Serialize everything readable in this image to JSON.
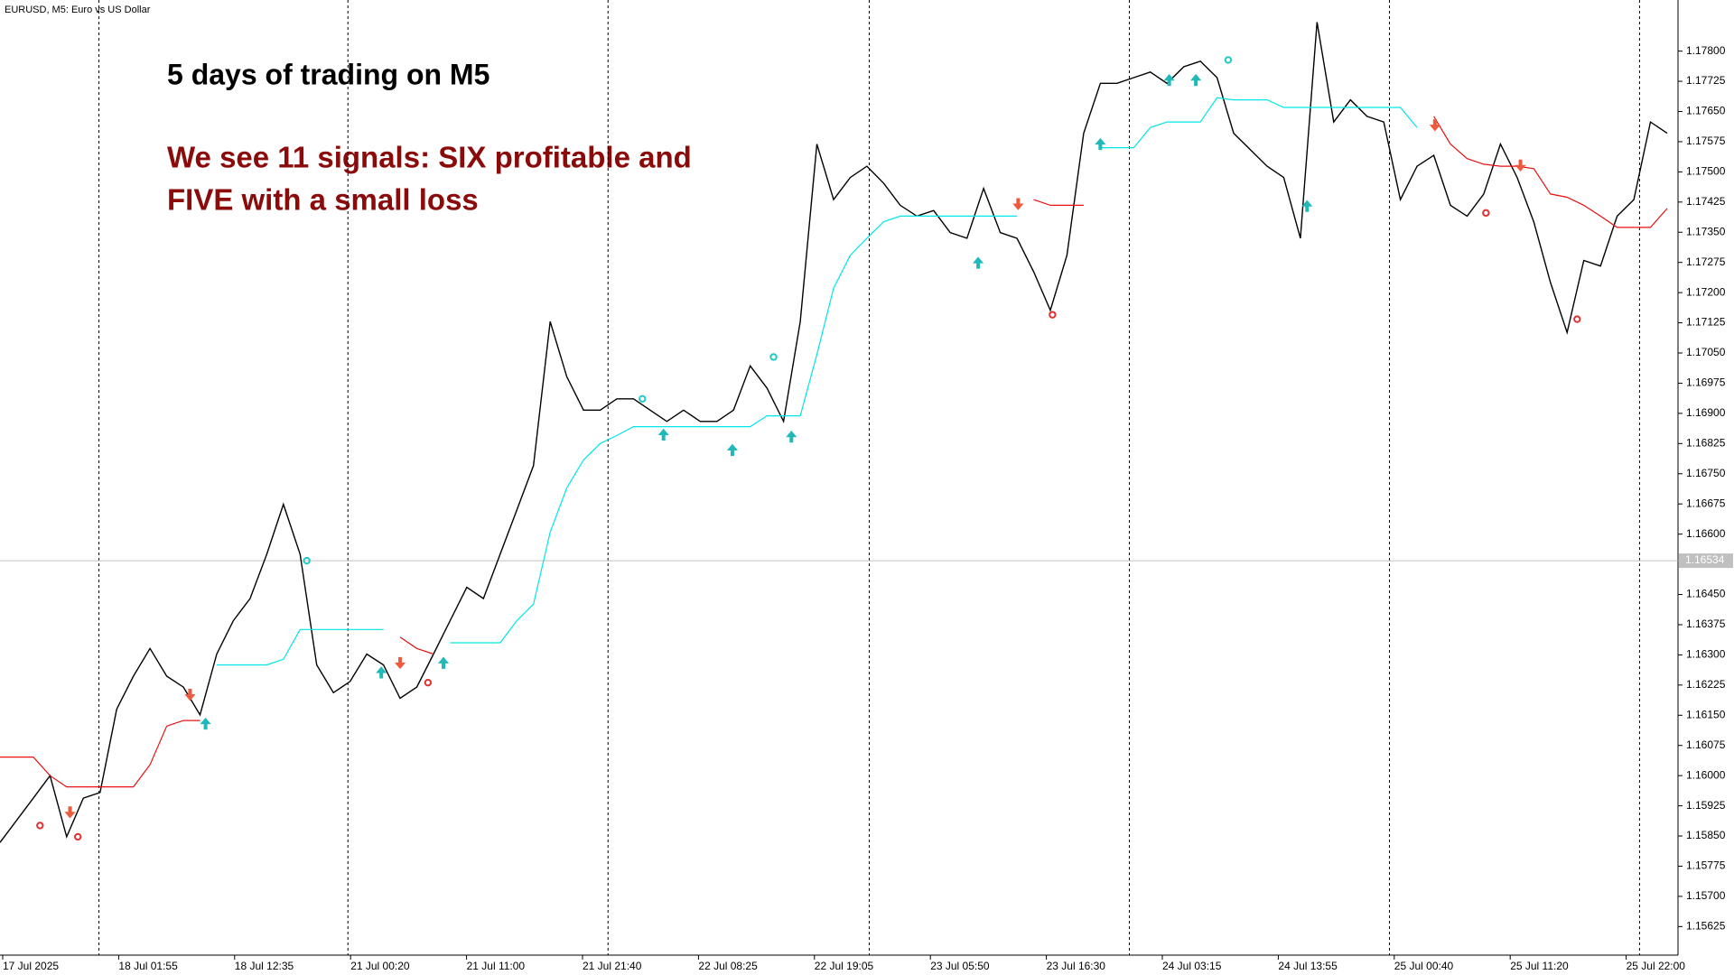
{
  "header": {
    "symbol": "EURUSD, M5:  Euro vs US Dollar"
  },
  "chart_data": {
    "type": "line",
    "annotations": [
      "5 days of trading on M5",
      "We see 11 signals: SIX profitable and",
      "FIVE with a small loss"
    ],
    "x_labels": [
      "17 Jul 2025",
      "18 Jul 01:55",
      "18 Jul 12:35",
      "21 Jul 00:20",
      "21 Jul 11:00",
      "21 Jul 21:40",
      "22 Jul 08:25",
      "22 Jul 19:05",
      "23 Jul 05:50",
      "23 Jul 16:30",
      "24 Jul 03:15",
      "24 Jul 13:55",
      "25 Jul 00:40",
      "25 Jul 11:20",
      "25 Jul 22:00"
    ],
    "ylim": [
      1.15554,
      1.17927
    ],
    "yticks": [
      {
        "value": 1.178,
        "label": "1.17800"
      },
      1.17725,
      {
        "value": 1.1765,
        "label": "1.17650"
      },
      1.17575,
      {
        "value": 1.175,
        "label": "1.17500"
      },
      1.17425,
      {
        "value": 1.1735,
        "label": "1.17350"
      },
      1.17275,
      {
        "value": 1.172,
        "label": "1.17200"
      },
      1.17125,
      {
        "value": 1.1705,
        "label": "1.17050"
      },
      1.16975,
      {
        "value": 1.169,
        "label": "1.16900"
      },
      1.16825,
      {
        "value": 1.1675,
        "label": "1.16750"
      },
      1.16675,
      {
        "value": 1.166,
        "label": "1.16600"
      },
      {
        "value": 1.1645,
        "label": "1.16450"
      },
      1.16375,
      {
        "value": 1.163,
        "label": "1.16300"
      },
      1.16225,
      {
        "value": 1.1615,
        "label": "1.16150"
      },
      1.16075,
      {
        "value": 1.16,
        "label": "1.16000"
      },
      1.15925,
      {
        "value": 1.1585,
        "label": "1.15850"
      },
      1.15775,
      {
        "value": 1.157,
        "label": "1.15700"
      },
      1.15625
    ],
    "current_price": 1.16534,
    "series": [
      {
        "color": "#000000",
        "values": [
          1.15834,
          1.15889,
          1.15944,
          1.16,
          1.15848,
          1.15944,
          1.15958,
          1.16165,
          1.16247,
          1.16316,
          1.16247,
          1.1622,
          1.16151,
          1.16302,
          1.16385,
          1.1644,
          1.1655,
          1.16674,
          1.1655,
          1.16275,
          1.16206,
          1.16234,
          1.16302,
          1.16275,
          1.16192,
          1.1622,
          1.16302,
          1.16385,
          1.16468,
          1.1644,
          1.1655,
          1.1666,
          1.1677,
          1.17128,
          1.16991,
          1.16908,
          1.16908,
          1.16936,
          1.16936,
          1.16908,
          1.1688,
          1.16908,
          1.1688,
          1.1688,
          1.16908,
          1.17018,
          1.16963,
          1.1688,
          1.17128,
          1.17569,
          1.17431,
          1.17486,
          1.17514,
          1.17472,
          1.17417,
          1.1739,
          1.17404,
          1.17349,
          1.17335,
          1.17459,
          1.17349,
          1.17335,
          1.17252,
          1.17156,
          1.17293,
          1.17596,
          1.1772,
          1.1772,
          1.17734,
          1.17748,
          1.1772,
          1.17761,
          1.17775,
          1.17734,
          1.17596,
          1.17555,
          1.17514,
          1.17486,
          1.17335,
          1.17872,
          1.17624,
          1.17679,
          1.17638,
          1.17624,
          1.17431,
          1.17514,
          1.17541,
          1.17417,
          1.1739,
          1.17445,
          1.17569,
          1.17486,
          1.17376,
          1.17225,
          1.17101,
          1.1728,
          1.17266,
          1.1739,
          1.17431,
          1.17624,
          1.17596
        ]
      },
      {
        "color": "#00e6e6",
        "values": [
          null,
          null,
          null,
          null,
          null,
          null,
          null,
          null,
          null,
          null,
          null,
          null,
          null,
          1.16275,
          1.16275,
          1.16275,
          1.16275,
          1.16289,
          1.16363,
          1.16363,
          1.16363,
          1.16363,
          1.16363,
          1.16363,
          null,
          null,
          null,
          1.1633,
          1.1633,
          1.1633,
          1.1633,
          1.16385,
          1.16426,
          1.16605,
          1.16715,
          1.16784,
          1.16825,
          1.16845,
          1.16867,
          1.16867,
          1.16867,
          1.16867,
          1.16867,
          1.16867,
          1.16867,
          1.16867,
          1.16894,
          1.16894,
          1.16894,
          1.17046,
          1.17211,
          1.17293,
          1.17335,
          1.17376,
          1.1739,
          1.1739,
          1.1739,
          1.1739,
          1.1739,
          1.1739,
          1.1739,
          1.1739,
          null,
          null,
          null,
          null,
          1.1756,
          1.1756,
          1.1756,
          1.1761,
          1.17624,
          1.17624,
          1.17624,
          1.17684,
          1.17679,
          1.17679,
          1.17679,
          1.1766,
          1.1766,
          1.1766,
          1.1766,
          1.1766,
          1.1766,
          1.1766,
          1.1766,
          1.1761,
          null,
          null,
          null,
          null,
          null,
          null,
          null,
          null,
          null,
          null,
          null,
          null,
          null,
          null,
          null
        ]
      },
      {
        "color": "#e81010",
        "values": [
          1.16046,
          1.16046,
          1.16046,
          1.16,
          1.15972,
          1.15972,
          1.15972,
          1.15972,
          1.15972,
          1.16027,
          1.16123,
          1.16137,
          1.16137,
          null,
          null,
          null,
          null,
          null,
          null,
          null,
          null,
          null,
          null,
          null,
          1.16344,
          1.16316,
          1.16302,
          null,
          null,
          null,
          null,
          null,
          null,
          null,
          null,
          null,
          null,
          null,
          null,
          null,
          null,
          null,
          null,
          null,
          null,
          null,
          null,
          null,
          null,
          null,
          null,
          null,
          null,
          null,
          null,
          null,
          null,
          null,
          null,
          null,
          null,
          null,
          1.17431,
          1.17417,
          1.17417,
          1.17417,
          null,
          null,
          null,
          null,
          null,
          null,
          null,
          null,
          null,
          null,
          null,
          null,
          null,
          null,
          null,
          null,
          null,
          null,
          null,
          null,
          1.17638,
          1.17569,
          1.17533,
          1.17519,
          1.17514,
          1.17514,
          1.17508,
          1.17445,
          1.17437,
          1.17417,
          1.1739,
          1.17362,
          1.17362,
          1.17362,
          1.17409
        ]
      }
    ],
    "signals": [
      {
        "kind": "down",
        "color": "#f05a3c",
        "x": 4.2,
        "y": 1.15909
      },
      {
        "kind": "exit",
        "color": "#e03030",
        "x": 2.4,
        "y": 1.15876
      },
      {
        "kind": "exit",
        "color": "#e03030",
        "x": 4.67,
        "y": 1.15848
      },
      {
        "kind": "down",
        "color": "#f05a3c",
        "x": 11.4,
        "y": 1.16201
      },
      {
        "kind": "up",
        "color": "#20b8b8",
        "x": 12.33,
        "y": 1.16129
      },
      {
        "kind": "exit",
        "color": "#20c8c8",
        "x": 18.4,
        "y": 1.16534
      },
      {
        "kind": "up",
        "color": "#20b8b8",
        "x": 22.87,
        "y": 1.16256
      },
      {
        "kind": "down",
        "color": "#f05a3c",
        "x": 24,
        "y": 1.1628
      },
      {
        "kind": "exit",
        "color": "#e03030",
        "x": 25.67,
        "y": 1.16231
      },
      {
        "kind": "up",
        "color": "#20b8b8",
        "x": 26.6,
        "y": 1.1628
      },
      {
        "kind": "exit",
        "color": "#20c8c8",
        "x": 38.53,
        "y": 1.16936
      },
      {
        "kind": "up",
        "color": "#20b8b8",
        "x": 39.8,
        "y": 1.16847
      },
      {
        "kind": "up",
        "color": "#20b8b8",
        "x": 43.93,
        "y": 1.16809
      },
      {
        "kind": "exit",
        "color": "#20c8c8",
        "x": 46.4,
        "y": 1.1704
      },
      {
        "kind": "up",
        "color": "#20b8b8",
        "x": 47.47,
        "y": 1.16842
      },
      {
        "kind": "up",
        "color": "#20b8b8",
        "x": 58.67,
        "y": 1.17274
      },
      {
        "kind": "down",
        "color": "#f05a3c",
        "x": 61.07,
        "y": 1.1742
      },
      {
        "kind": "exit",
        "color": "#e03030",
        "x": 63.13,
        "y": 1.17145
      },
      {
        "kind": "up",
        "color": "#20b8b8",
        "x": 66,
        "y": 1.17569
      },
      {
        "kind": "up",
        "color": "#20b8b8",
        "x": 70.13,
        "y": 1.17728
      },
      {
        "kind": "up",
        "color": "#20b8b8",
        "x": 71.73,
        "y": 1.17728
      },
      {
        "kind": "exit",
        "color": "#20c8c8",
        "x": 73.67,
        "y": 1.17778
      },
      {
        "kind": "up",
        "color": "#20b8b8",
        "x": 78.4,
        "y": 1.17415
      },
      {
        "kind": "down",
        "color": "#f05a3c",
        "x": 86.07,
        "y": 1.17616
      },
      {
        "kind": "exit",
        "color": "#e03030",
        "x": 89.13,
        "y": 1.17398
      },
      {
        "kind": "down",
        "color": "#f05a3c",
        "x": 91.2,
        "y": 1.17516
      },
      {
        "kind": "exit",
        "color": "#e03030",
        "x": 94.6,
        "y": 1.17134
      }
    ]
  }
}
